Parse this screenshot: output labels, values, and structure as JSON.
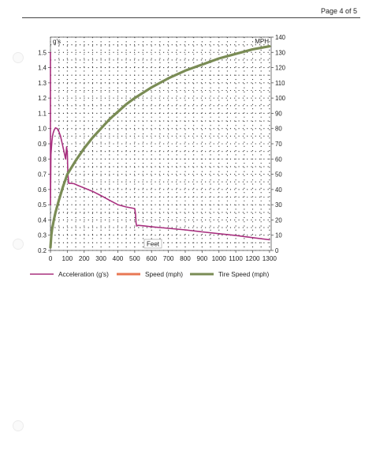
{
  "page": {
    "page_number": "Page 4 of 5"
  },
  "chart_data": {
    "type": "line",
    "x_label": "Feet",
    "y_left_unit": "g's",
    "y_right_unit": "MPH",
    "x_range": [
      0,
      1310
    ],
    "y_left_range": [
      0.2,
      1.6
    ],
    "y_right_range": [
      0,
      140
    ],
    "x_ticks": [
      0,
      100,
      200,
      300,
      400,
      500,
      600,
      700,
      800,
      900,
      1000,
      1100,
      1200,
      1300
    ],
    "y_left_ticks": [
      0.2,
      0.3,
      0.4,
      0.5,
      0.6,
      0.7,
      0.8,
      0.9,
      1.0,
      1.1,
      1.2,
      1.3,
      1.4,
      1.5
    ],
    "y_right_ticks": [
      0,
      10,
      20,
      30,
      40,
      50,
      60,
      70,
      80,
      90,
      100,
      110,
      120,
      130,
      140
    ],
    "grid": "dotted",
    "legend_position": "bottom",
    "series": [
      {
        "name": "Acceleration (g's)",
        "axis": "left",
        "color": "#a8307f",
        "x": [
          0,
          0,
          3,
          6,
          9,
          12,
          16,
          22,
          30,
          40,
          50,
          60,
          70,
          80,
          90,
          96,
          100,
          102,
          104,
          108,
          112,
          120,
          140,
          160,
          200,
          250,
          300,
          350,
          400,
          450,
          500,
          505,
          508,
          512,
          520,
          550,
          600,
          700,
          800,
          900,
          1000,
          1100,
          1200,
          1300
        ],
        "y": [
          1.5,
          0.5,
          0.83,
          0.88,
          0.92,
          0.95,
          0.97,
          0.99,
          1.005,
          1.0,
          0.98,
          0.95,
          0.9,
          0.85,
          0.8,
          0.88,
          0.84,
          0.76,
          0.7,
          0.64,
          0.64,
          0.64,
          0.638,
          0.628,
          0.61,
          0.588,
          0.56,
          0.53,
          0.5,
          0.485,
          0.475,
          0.44,
          0.38,
          0.36,
          0.365,
          0.362,
          0.355,
          0.345,
          0.335,
          0.322,
          0.31,
          0.298,
          0.284,
          0.27
        ]
      },
      {
        "name": "Speed (mph)",
        "axis": "right",
        "color": "#e87854",
        "x": [],
        "y": []
      },
      {
        "name": "Tire Speed (mph)",
        "axis": "right",
        "color": "#7a8c55",
        "x": [
          0,
          5,
          10,
          20,
          30,
          50,
          75,
          100,
          150,
          200,
          250,
          300,
          350,
          400,
          450,
          500,
          600,
          700,
          800,
          900,
          1000,
          1100,
          1200,
          1300
        ],
        "y": [
          2,
          10,
          14,
          20,
          25,
          33,
          42,
          50,
          59,
          67,
          74,
          80,
          86,
          91,
          96,
          100,
          107,
          113,
          118,
          122,
          126,
          129,
          132,
          134
        ]
      }
    ]
  }
}
